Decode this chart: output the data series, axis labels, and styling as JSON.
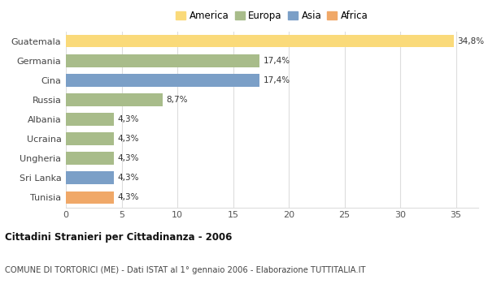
{
  "categories": [
    "Guatemala",
    "Germania",
    "Cina",
    "Russia",
    "Albania",
    "Ucraina",
    "Ungheria",
    "Sri Lanka",
    "Tunisia"
  ],
  "values": [
    34.8,
    17.4,
    17.4,
    8.7,
    4.3,
    4.3,
    4.3,
    4.3,
    4.3
  ],
  "labels": [
    "34,8%",
    "17,4%",
    "17,4%",
    "8,7%",
    "4,3%",
    "4,3%",
    "4,3%",
    "4,3%",
    "4,3%"
  ],
  "continents": [
    "America",
    "Europa",
    "Asia",
    "Europa",
    "Europa",
    "Europa",
    "Europa",
    "Asia",
    "Africa"
  ],
  "colors": {
    "America": "#FADA7A",
    "Europa": "#A8BC8A",
    "Asia": "#7B9FC7",
    "Africa": "#F0A868"
  },
  "legend_order": [
    "America",
    "Europa",
    "Asia",
    "Africa"
  ],
  "xlim": [
    0,
    37
  ],
  "xticks": [
    0,
    5,
    10,
    15,
    20,
    25,
    30,
    35
  ],
  "title_bold": "Cittadini Stranieri per Cittadinanza - 2006",
  "subtitle": "COMUNE DI TORTORICI (ME) - Dati ISTAT al 1° gennaio 2006 - Elaborazione TUTTITALIA.IT",
  "bg_color": "#ffffff",
  "grid_color": "#dddddd",
  "bar_height": 0.65
}
